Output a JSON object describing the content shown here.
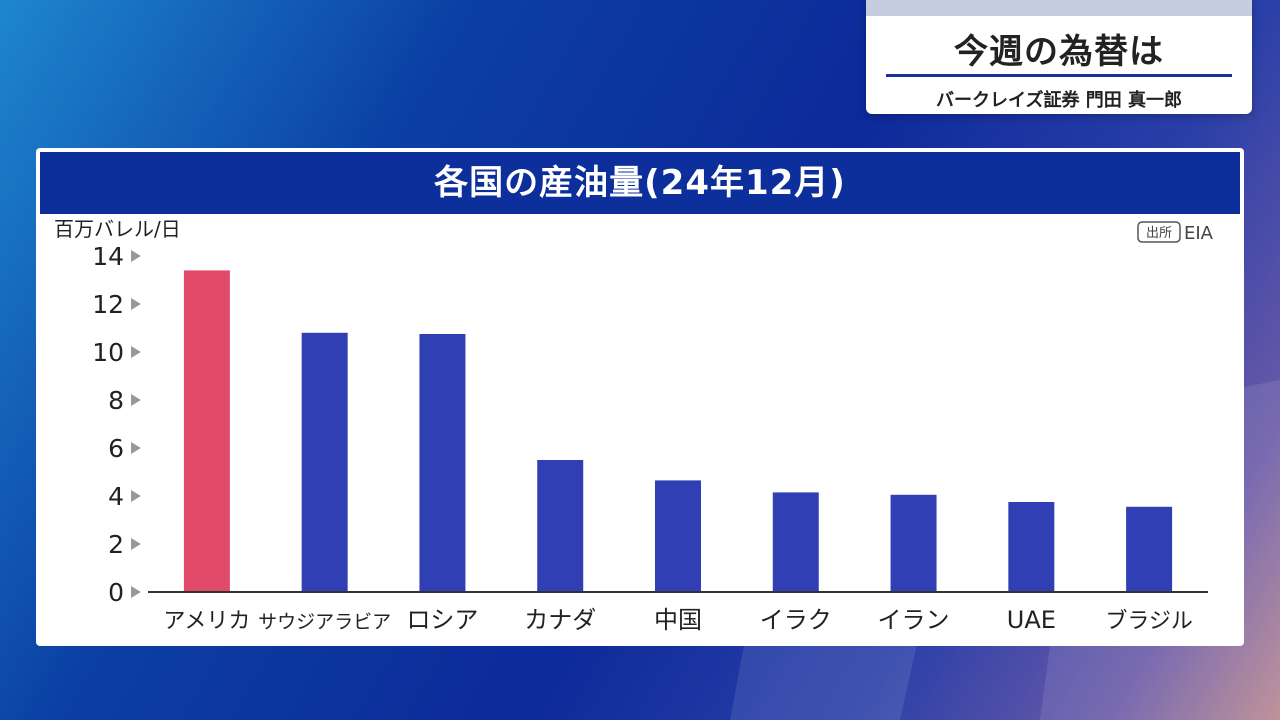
{
  "title_card": {
    "title": "今週の為替は",
    "subtitle": "バークレイズ証券 門田 真一郎"
  },
  "chart_data": {
    "type": "bar",
    "title": "各国の産油量(24年12月)",
    "ylabel": "百万バレル/日",
    "source_tag": "出所",
    "source": "EIA",
    "categories": [
      "アメリカ",
      "サウジアラビア",
      "ロシア",
      "カナダ",
      "中国",
      "イラク",
      "イラン",
      "UAE",
      "ブラジル"
    ],
    "values": [
      13.4,
      10.8,
      10.75,
      5.5,
      4.65,
      4.15,
      4.05,
      3.75,
      3.55
    ],
    "yticks": [
      0,
      2,
      4,
      6,
      8,
      10,
      12,
      14
    ],
    "ylim": [
      0,
      14
    ],
    "highlight_color": "#e24a6a",
    "bar_color": "#3040b4",
    "grid": false
  }
}
